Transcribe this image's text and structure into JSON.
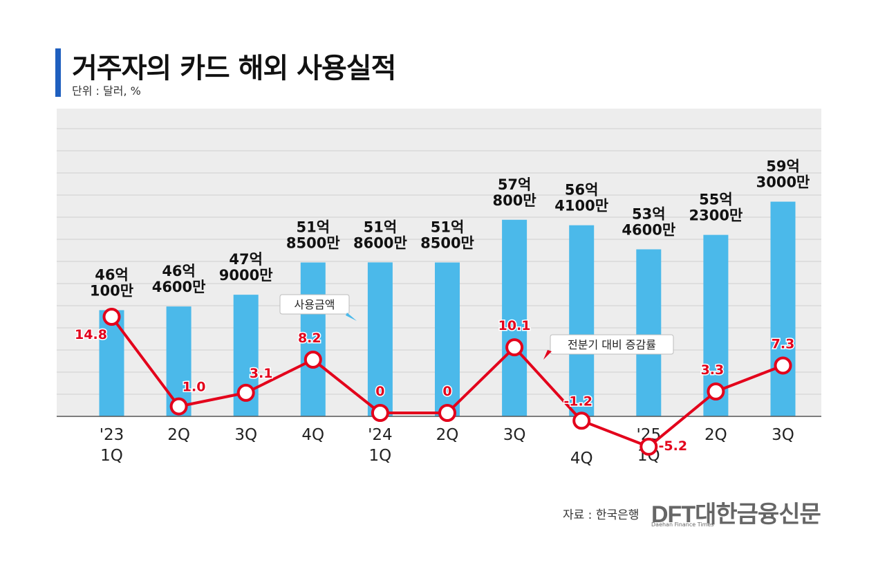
{
  "header": {
    "title": "거주자의 카드 해외 사용실적",
    "unit": "단위 : 달러, %"
  },
  "chart_data": {
    "type": "bar+line",
    "title": "거주자의 카드 해외 사용실적",
    "ylabel": "달러, %",
    "categories": [
      [
        "'23",
        "1Q"
      ],
      [
        "2Q"
      ],
      [
        "3Q"
      ],
      [
        "4Q"
      ],
      [
        "'24",
        "1Q"
      ],
      [
        "2Q"
      ],
      [
        "3Q"
      ],
      [
        "4Q"
      ],
      [
        "'25",
        "1Q"
      ],
      [
        "2Q"
      ],
      [
        "3Q"
      ]
    ],
    "series": [
      {
        "name": "사용금액",
        "kind": "bar",
        "values": [
          46.01,
          46.46,
          47.9,
          51.85,
          51.86,
          51.85,
          57.08,
          56.41,
          53.46,
          55.23,
          59.3
        ],
        "labels": [
          [
            "46억",
            "100만"
          ],
          [
            "46억",
            "4600만"
          ],
          [
            "47억",
            "9000만"
          ],
          [
            "51억",
            "8500만"
          ],
          [
            "51억",
            "8600만"
          ],
          [
            "51억",
            "8500만"
          ],
          [
            "57억",
            "800만"
          ],
          [
            "56억",
            "4100만"
          ],
          [
            "53억",
            "4600만"
          ],
          [
            "55억",
            "2300만"
          ],
          [
            "59억",
            "3000만"
          ]
        ]
      },
      {
        "name": "전분기 대비 증감률",
        "kind": "line",
        "values": [
          14.8,
          1.0,
          3.1,
          8.2,
          0,
          0,
          10.1,
          -1.2,
          -5.2,
          3.3,
          7.3
        ],
        "labels": [
          "14.8",
          "1.0",
          "3.1",
          "8.2",
          "0",
          "0",
          "10.1",
          "-1.2",
          "-5.2",
          "3.3",
          "7.3"
        ]
      }
    ],
    "callouts": {
      "bar": "사용금액",
      "line": "전분기 대비 증감률"
    },
    "colors": {
      "bar": "#4bb9ea",
      "line": "#e3001b",
      "label": "#e3001b"
    }
  },
  "footer": {
    "source": "자료 : 한국은행",
    "logo_main": "DFT대한금융신문",
    "logo_sub": "Daehan Finance Times"
  }
}
